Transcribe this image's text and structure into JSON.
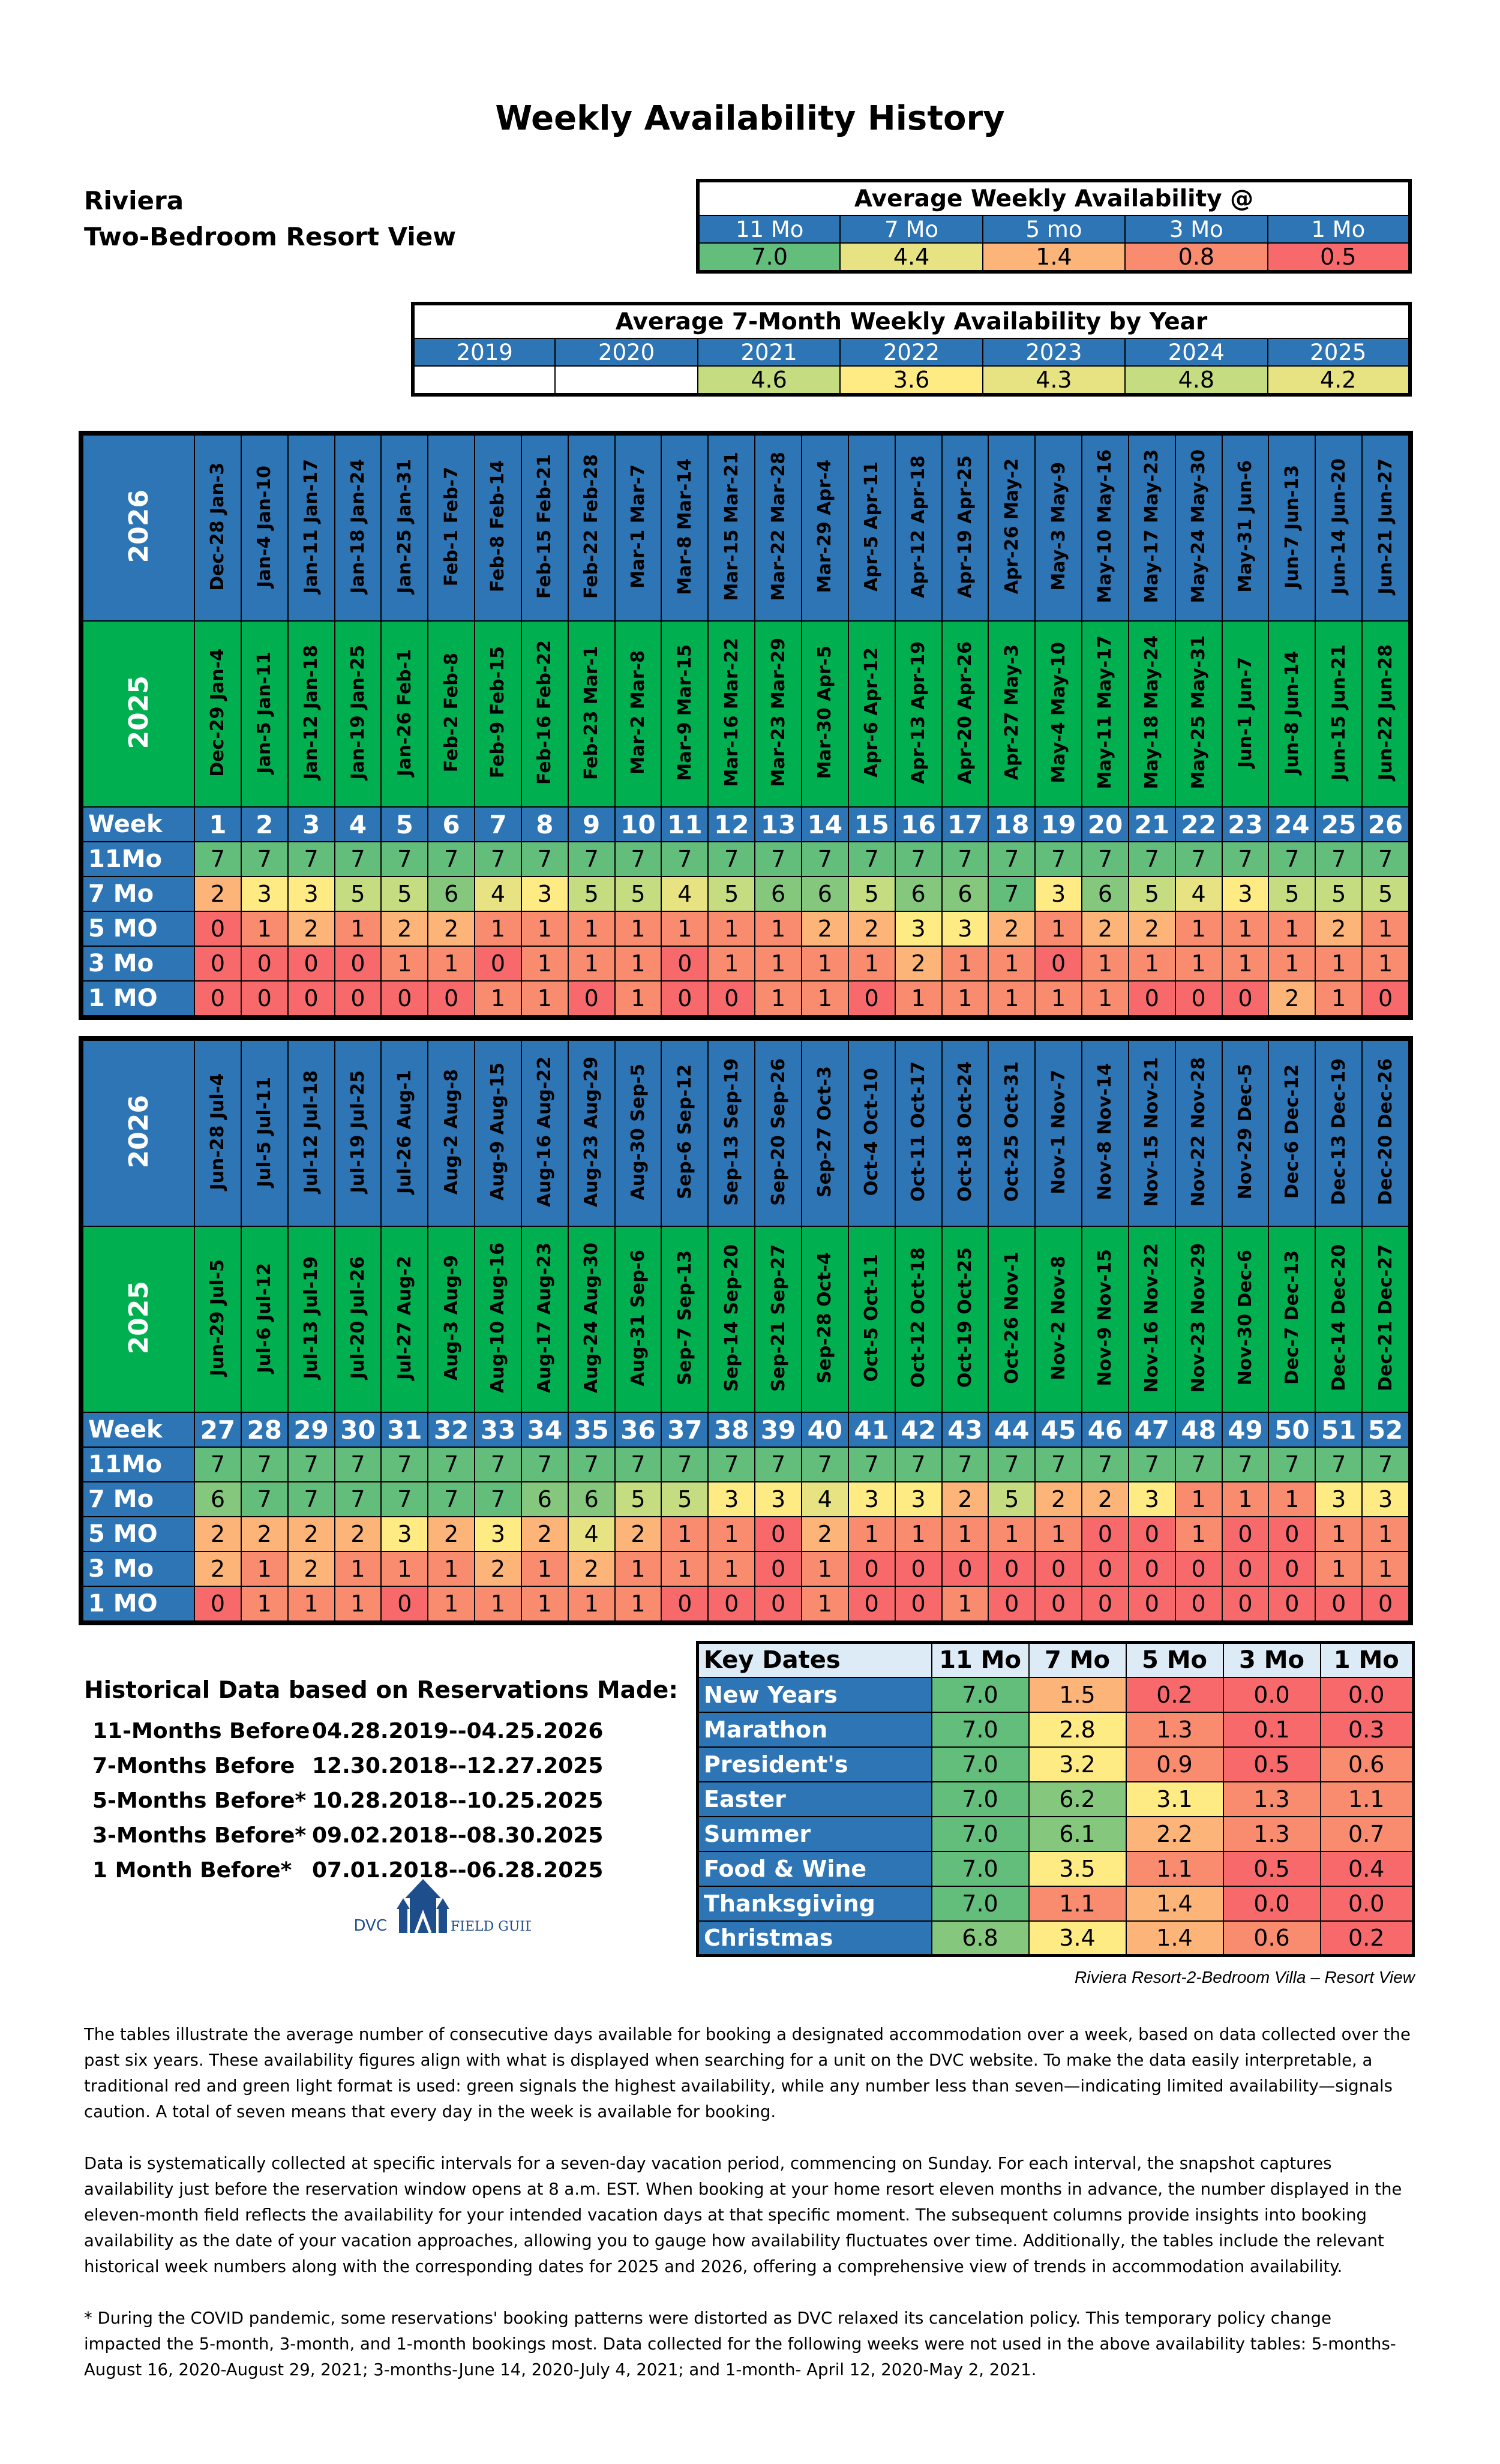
{
  "title": "Weekly Availability History",
  "resort": {
    "name": "Riviera",
    "room": "Two-Bedroom Resort View"
  },
  "colors": {
    "blue": "#2e75b6",
    "green_year": "#00b050",
    "v7": "#63be7b",
    "v6": "#85c87d",
    "v5": "#c5dc80",
    "v4": "#e7e282",
    "v3": "#ffeb84",
    "v2": "#fdb478",
    "v1": "#f98b6f",
    "v0": "#f8696b"
  },
  "avg_weekly": {
    "title": "Average Weekly Availability @",
    "labels": [
      "11 Mo",
      "7 Mo",
      "5 mo",
      "3 Mo",
      "1 Mo"
    ],
    "values": [
      "7.0",
      "4.4",
      "1.4",
      "0.8",
      "0.5"
    ]
  },
  "avg_by_year": {
    "title": "Average 7-Month Weekly  Availability by Year",
    "years": [
      "2019",
      "2020",
      "2021",
      "2022",
      "2023",
      "2024",
      "2025"
    ],
    "values": [
      "",
      "",
      "4.6",
      "3.6",
      "4.3",
      "4.8",
      "4.2"
    ]
  },
  "grid_labels": {
    "year_2026": "2026",
    "year_2025": "2025",
    "week": "Week",
    "rows": [
      "11Mo",
      "7 Mo",
      "5 MO",
      "3 Mo",
      "1 MO"
    ]
  },
  "half1": {
    "dates_2026": [
      "Dec-28 Jan-3",
      "Jan-4 Jan-10",
      "Jan-11 Jan-17",
      "Jan-18 Jan-24",
      "Jan-25 Jan-31",
      "Feb-1 Feb-7",
      "Feb-8 Feb-14",
      "Feb-15 Feb-21",
      "Feb-22 Feb-28",
      "Mar-1 Mar-7",
      "Mar-8 Mar-14",
      "Mar-15 Mar-21",
      "Mar-22 Mar-28",
      "Mar-29 Apr-4",
      "Apr-5 Apr-11",
      "Apr-12 Apr-18",
      "Apr-19 Apr-25",
      "Apr-26 May-2",
      "May-3 May-9",
      "May-10 May-16",
      "May-17 May-23",
      "May-24 May-30",
      "May-31 Jun-6",
      "Jun-7 Jun-13",
      "Jun-14 Jun-20",
      "Jun-21 Jun-27"
    ],
    "dates_2025": [
      "Dec-29 Jan-4",
      "Jan-5 Jan-11",
      "Jan-12 Jan-18",
      "Jan-19 Jan-25",
      "Jan-26 Feb-1",
      "Feb-2 Feb-8",
      "Feb-9 Feb-15",
      "Feb-16 Feb-22",
      "Feb-23 Mar-1",
      "Mar-2 Mar-8",
      "Mar-9 Mar-15",
      "Mar-16 Mar-22",
      "Mar-23 Mar-29",
      "Mar-30 Apr-5",
      "Apr-6 Apr-12",
      "Apr-13 Apr-19",
      "Apr-20 Apr-26",
      "Apr-27 May-3",
      "May-4 May-10",
      "May-11 May-17",
      "May-18 May-24",
      "May-25 May-31",
      "Jun-1 Jun-7",
      "Jun-8 Jun-14",
      "Jun-15 Jun-21",
      "Jun-22 Jun-28"
    ],
    "weeks": [
      1,
      2,
      3,
      4,
      5,
      6,
      7,
      8,
      9,
      10,
      11,
      12,
      13,
      14,
      15,
      16,
      17,
      18,
      19,
      20,
      21,
      22,
      23,
      24,
      25,
      26
    ],
    "rows": [
      [
        7,
        7,
        7,
        7,
        7,
        7,
        7,
        7,
        7,
        7,
        7,
        7,
        7,
        7,
        7,
        7,
        7,
        7,
        7,
        7,
        7,
        7,
        7,
        7,
        7,
        7
      ],
      [
        2,
        3,
        3,
        5,
        5,
        6,
        4,
        3,
        5,
        5,
        4,
        5,
        6,
        6,
        5,
        6,
        6,
        7,
        3,
        6,
        5,
        4,
        3,
        5,
        5,
        5
      ],
      [
        0,
        1,
        2,
        1,
        2,
        2,
        1,
        1,
        1,
        1,
        1,
        1,
        1,
        2,
        2,
        3,
        3,
        2,
        1,
        2,
        2,
        1,
        1,
        1,
        2,
        1
      ],
      [
        0,
        0,
        0,
        0,
        1,
        1,
        0,
        1,
        1,
        1,
        0,
        1,
        1,
        1,
        1,
        2,
        1,
        1,
        0,
        1,
        1,
        1,
        1,
        1,
        1,
        1
      ],
      [
        0,
        0,
        0,
        0,
        0,
        0,
        1,
        1,
        0,
        1,
        0,
        0,
        1,
        1,
        0,
        1,
        1,
        1,
        1,
        1,
        0,
        0,
        0,
        2,
        1,
        0
      ]
    ]
  },
  "half2": {
    "dates_2026": [
      "Jun-28 Jul-4",
      "Jul-5 Jul-11",
      "Jul-12 Jul-18",
      "Jul-19 Jul-25",
      "Jul-26 Aug-1",
      "Aug-2 Aug-8",
      "Aug-9 Aug-15",
      "Aug-16 Aug-22",
      "Aug-23 Aug-29",
      "Aug-30 Sep-5",
      "Sep-6 Sep-12",
      "Sep-13 Sep-19",
      "Sep-20 Sep-26",
      "Sep-27 Oct-3",
      "Oct-4 Oct-10",
      "Oct-11 Oct-17",
      "Oct-18 Oct-24",
      "Oct-25 Oct-31",
      "Nov-1 Nov-7",
      "Nov-8 Nov-14",
      "Nov-15 Nov-21",
      "Nov-22 Nov-28",
      "Nov-29 Dec-5",
      "Dec-6 Dec-12",
      "Dec-13 Dec-19",
      "Dec-20 Dec-26"
    ],
    "dates_2025": [
      "Jun-29 Jul-5",
      "Jul-6 Jul-12",
      "Jul-13 Jul-19",
      "Jul-20 Jul-26",
      "Jul-27 Aug-2",
      "Aug-3 Aug-9",
      "Aug-10 Aug-16",
      "Aug-17 Aug-23",
      "Aug-24 Aug-30",
      "Aug-31 Sep-6",
      "Sep-7 Sep-13",
      "Sep-14 Sep-20",
      "Sep-21 Sep-27",
      "Sep-28 Oct-4",
      "Oct-5 Oct-11",
      "Oct-12 Oct-18",
      "Oct-19 Oct-25",
      "Oct-26 Nov-1",
      "Nov-2 Nov-8",
      "Nov-9 Nov-15",
      "Nov-16 Nov-22",
      "Nov-23 Nov-29",
      "Nov-30 Dec-6",
      "Dec-7 Dec-13",
      "Dec-14 Dec-20",
      "Dec-21 Dec-27"
    ],
    "weeks": [
      27,
      28,
      29,
      30,
      31,
      32,
      33,
      34,
      35,
      36,
      37,
      38,
      39,
      40,
      41,
      42,
      43,
      44,
      45,
      46,
      47,
      48,
      49,
      50,
      51,
      52
    ],
    "rows": [
      [
        7,
        7,
        7,
        7,
        7,
        7,
        7,
        7,
        7,
        7,
        7,
        7,
        7,
        7,
        7,
        7,
        7,
        7,
        7,
        7,
        7,
        7,
        7,
        7,
        7,
        7
      ],
      [
        6,
        7,
        7,
        7,
        7,
        7,
        7,
        6,
        6,
        5,
        5,
        3,
        3,
        4,
        3,
        3,
        2,
        5,
        2,
        2,
        3,
        1,
        1,
        1,
        3,
        3
      ],
      [
        2,
        2,
        2,
        2,
        3,
        2,
        3,
        2,
        4,
        2,
        1,
        1,
        0,
        2,
        1,
        1,
        1,
        1,
        1,
        0,
        0,
        1,
        0,
        0,
        1,
        1
      ],
      [
        2,
        1,
        2,
        1,
        1,
        1,
        2,
        1,
        2,
        1,
        1,
        1,
        0,
        1,
        0,
        0,
        0,
        0,
        0,
        0,
        0,
        0,
        0,
        0,
        1,
        1
      ],
      [
        0,
        1,
        1,
        1,
        0,
        1,
        1,
        1,
        1,
        1,
        0,
        0,
        0,
        1,
        0,
        0,
        1,
        0,
        0,
        0,
        0,
        0,
        0,
        0,
        0,
        0
      ]
    ]
  },
  "historical": {
    "title": "Historical Data based on Reservations Made:",
    "rows": [
      {
        "label": "11-Months Before",
        "range": "04.28.2019--04.25.2026"
      },
      {
        "label": "7-Months Before",
        "range": "12.30.2018--12.27.2025"
      },
      {
        "label": "5-Months Before*",
        "range": "10.28.2018--10.25.2025"
      },
      {
        "label": "3-Months Before*",
        "range": "09.02.2018--08.30.2025"
      },
      {
        "label": "1 Month Before*",
        "range": "07.01.2018--06.28.2025"
      }
    ]
  },
  "logo": {
    "left": "DVC",
    "right": "FIELD GUIDE"
  },
  "key_dates": {
    "headers": [
      "Key Dates",
      "11 Mo",
      "7 Mo",
      "5 Mo",
      "3 Mo",
      "1 Mo"
    ],
    "rows": [
      {
        "name": "New Years",
        "values": [
          "7.0",
          "1.5",
          "0.2",
          "0.0",
          "0.0"
        ]
      },
      {
        "name": "Marathon",
        "values": [
          "7.0",
          "2.8",
          "1.3",
          "0.1",
          "0.3"
        ]
      },
      {
        "name": "President's",
        "values": [
          "7.0",
          "3.2",
          "0.9",
          "0.5",
          "0.6"
        ]
      },
      {
        "name": "Easter",
        "values": [
          "7.0",
          "6.2",
          "3.1",
          "1.3",
          "1.1"
        ]
      },
      {
        "name": "Summer",
        "values": [
          "7.0",
          "6.1",
          "2.2",
          "1.3",
          "0.7"
        ]
      },
      {
        "name": "Food & Wine",
        "values": [
          "7.0",
          "3.5",
          "1.1",
          "0.5",
          "0.4"
        ]
      },
      {
        "name": "Thanksgiving",
        "values": [
          "7.0",
          "1.1",
          "1.4",
          "0.0",
          "0.0"
        ]
      },
      {
        "name": "Christmas",
        "values": [
          "6.8",
          "3.4",
          "1.4",
          "0.6",
          "0.2"
        ]
      }
    ],
    "caption": "Riviera Resort-2-Bedroom Villa – Resort View"
  },
  "notes": [
    "The tables illustrate the average number of consecutive days available for booking a designated accommodation over a week, based on data collected over the past six years. These availability figures align with what is displayed when searching for a unit on the DVC website. To make the data easily interpretable, a traditional red and green light format is used: green signals the highest availability, while any number less than seven—indicating limited availability—signals caution. A total of seven means that every day in the week is available for booking.",
    "Data is systematically collected at specific intervals for a seven-day vacation period, commencing on Sunday. For each interval, the snapshot captures availability just before the reservation window opens at 8 a.m. EST. When booking at your home resort eleven months in advance, the number displayed in the eleven-month field reflects the availability for your intended vacation days at that specific moment. The subsequent columns provide insights into booking availability as the date of your vacation approaches, allowing you to gauge how availability fluctuates over time. Additionally, the tables include the relevant historical week numbers along with the corresponding dates for 2025 and 2026, offering a comprehensive view of trends in accommodation availability.",
    "* During the COVID pandemic, some reservations' booking patterns were distorted as DVC relaxed its cancelation policy. This temporary policy change impacted the 5-month, 3-month, and 1-month bookings most. Data collected for the following weeks were not used in the above availability tables:  5-months- August 16, 2020-August 29, 2021; 3-months-June 14, 2020-July 4, 2021; and 1-month- April 12, 2020-May 2, 2021."
  ]
}
